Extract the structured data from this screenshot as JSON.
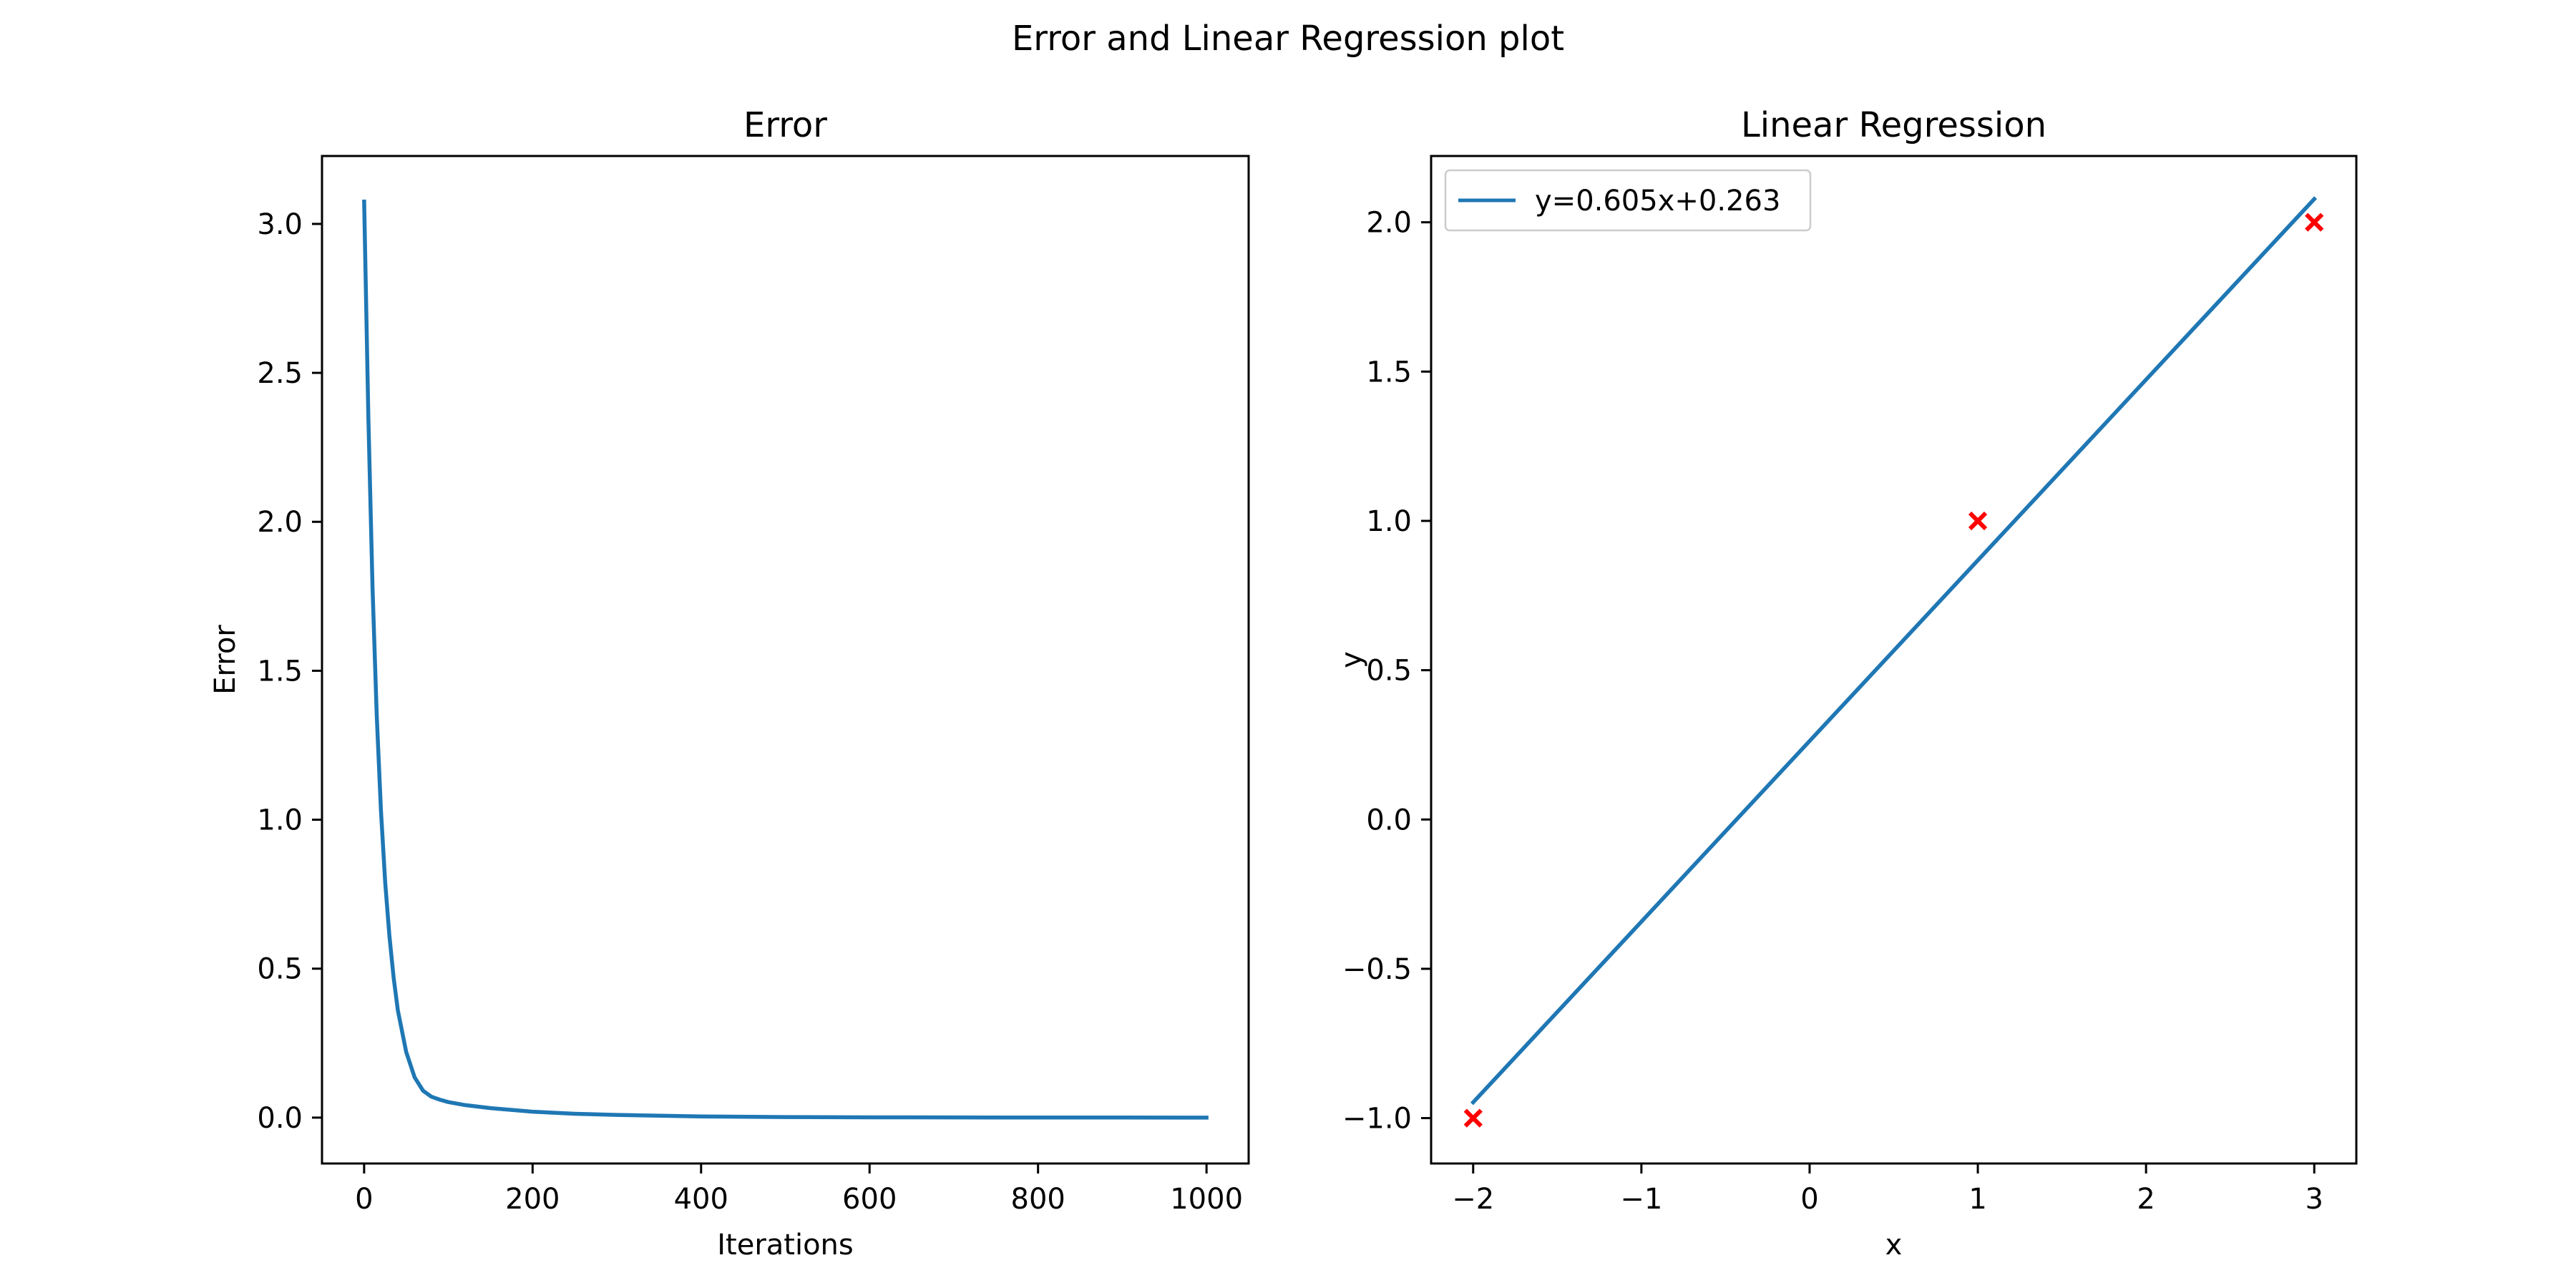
{
  "figure": {
    "suptitle": "Error and Linear Regression plot",
    "colors": {
      "line": "#1f77b4",
      "marker": "#ff0000",
      "axes": "#000000",
      "background": "#ffffff"
    }
  },
  "chart_data": [
    {
      "type": "line",
      "title": "Error",
      "xlabel": "Iterations",
      "ylabel": "Error",
      "xlim": [
        -50,
        1050
      ],
      "ylim": [
        -0.154,
        3.228
      ],
      "xticks": [
        0,
        200,
        400,
        600,
        800,
        1000
      ],
      "xtick_labels": [
        "0",
        "200",
        "400",
        "600",
        "800",
        "1000"
      ],
      "yticks": [
        0.0,
        0.5,
        1.0,
        1.5,
        2.0,
        2.5,
        3.0
      ],
      "ytick_labels": [
        "0.0",
        "0.5",
        "1.0",
        "1.5",
        "2.0",
        "2.5",
        "3.0"
      ],
      "grid": false,
      "series": [
        {
          "x": [
            0,
            5,
            10,
            15,
            20,
            25,
            30,
            35,
            40,
            50,
            60,
            70,
            80,
            90,
            100,
            120,
            150,
            200,
            250,
            300,
            400,
            500,
            600,
            700,
            800,
            900,
            1000
          ],
          "y": [
            3.075,
            2.35,
            1.78,
            1.35,
            1.03,
            0.79,
            0.61,
            0.47,
            0.36,
            0.22,
            0.135,
            0.09,
            0.07,
            0.06,
            0.052,
            0.042,
            0.032,
            0.02,
            0.013,
            0.009,
            0.004,
            0.002,
            0.001,
            0.0006,
            0.0003,
            0.0001,
            0.0
          ]
        }
      ]
    },
    {
      "type": "scatter",
      "title": "Linear Regression",
      "xlabel": "x",
      "ylabel": "y",
      "xlim": [
        -2.25,
        3.25
      ],
      "ylim": [
        -1.152,
        2.222
      ],
      "xticks": [
        -2,
        -1,
        0,
        1,
        2,
        3
      ],
      "xtick_labels": [
        "−2",
        "−1",
        "0",
        "1",
        "2",
        "3"
      ],
      "yticks": [
        -1.0,
        -0.5,
        0.0,
        0.5,
        1.0,
        1.5,
        2.0
      ],
      "ytick_labels": [
        "−1.0",
        "−0.5",
        "0.0",
        "0.5",
        "1.0",
        "1.5",
        "2.0"
      ],
      "grid": false,
      "legend": {
        "location": "upper left",
        "entries": [
          "y=0.605x+0.263"
        ]
      },
      "series": [
        {
          "name": "y=0.605x+0.263",
          "kind": "line",
          "x": [
            -2,
            3
          ],
          "y": [
            -0.947,
            2.078
          ]
        },
        {
          "kind": "scatter",
          "marker": "x",
          "x": [
            -2,
            1,
            3
          ],
          "y": [
            -1,
            1,
            2
          ]
        }
      ]
    }
  ]
}
